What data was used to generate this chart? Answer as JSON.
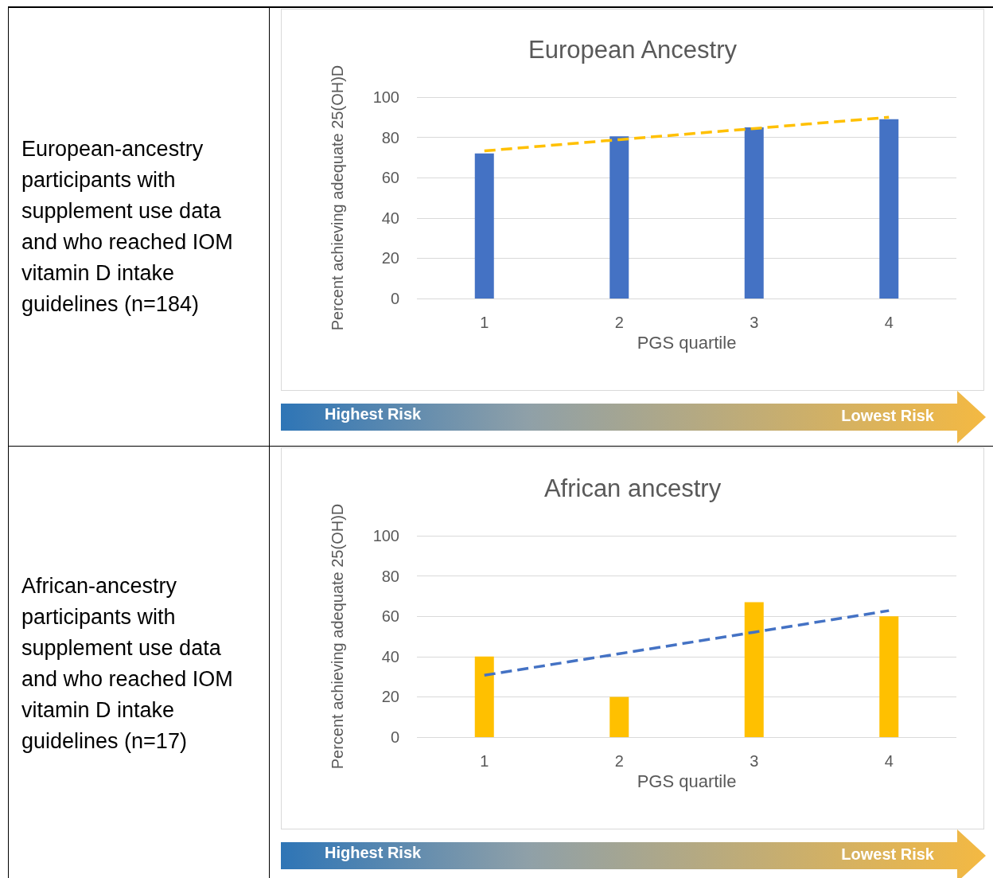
{
  "chart_data": [
    {
      "type": "bar",
      "title": "European Ancestry",
      "xlabel": "PGS quartile",
      "ylabel": "Percent achieving adequate 25(OH)D",
      "x": [
        1,
        2,
        3,
        4
      ],
      "xlim": [
        0.5,
        4.5
      ],
      "xticks": [
        1,
        2,
        3,
        4
      ],
      "ylim": [
        0,
        100
      ],
      "yticks": [
        0,
        20,
        40,
        60,
        80,
        100
      ],
      "grid": "y",
      "series": [
        {
          "color": "#4472c4",
          "values": [
            72,
            80.5,
            85,
            89
          ]
        },
        {
          "type": "line",
          "color": "#ffc000",
          "values": [
            73.3,
            78.9,
            84.4,
            90
          ],
          "line_style": "dashed"
        }
      ],
      "annotations": [
        "European-ancestry participants with supplement use data and who reached IOM vitamin D intake guidelines (n=184)",
        "Highest Risk",
        "Lowest Risk"
      ]
    },
    {
      "type": "bar",
      "title": "African ancestry",
      "xlabel": "PGS quartile",
      "ylabel": "Percent achieving adequate 25(OH)D",
      "x": [
        1,
        2,
        3,
        4
      ],
      "xlim": [
        0.5,
        4.5
      ],
      "xticks": [
        1,
        2,
        3,
        4
      ],
      "ylim": [
        0,
        100
      ],
      "yticks": [
        0,
        20,
        40,
        60,
        80,
        100
      ],
      "grid": "y",
      "series": [
        {
          "color": "#ffc000",
          "values": [
            40,
            20,
            67,
            60
          ]
        },
        {
          "type": "line",
          "color": "#4472c4",
          "values": [
            30.7,
            41.4,
            52.1,
            62.8
          ],
          "line_style": "dashed"
        }
      ],
      "annotations": [
        "African-ancestry participants with supplement use data and who reached IOM vitamin D intake guidelines (n=17)",
        "Highest Risk",
        "Lowest Risk"
      ]
    }
  ]
}
